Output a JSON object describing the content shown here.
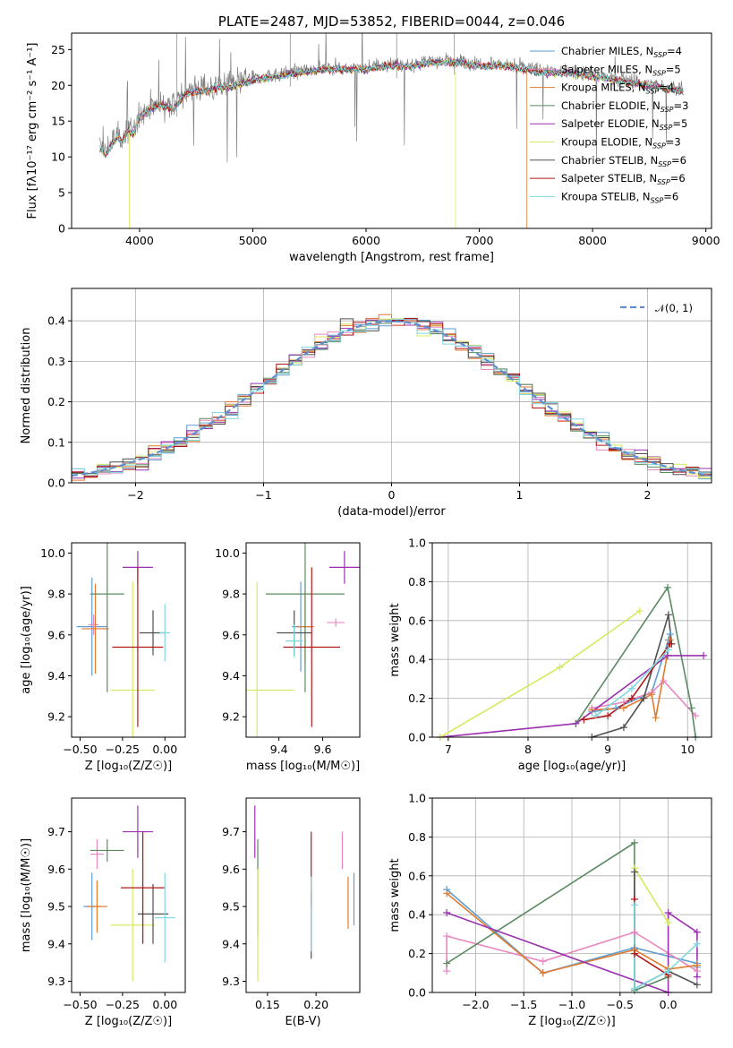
{
  "colors": [
    "#5f9ed1",
    "#e888c0",
    "#e07b30",
    "#5b8a60",
    "#9b30b0",
    "#d8e860",
    "#505050",
    "#b01818",
    "#80d8e0"
  ],
  "chart_data": [
    {
      "id": "spectrum",
      "type": "line",
      "title": "PLATE=2487, MJD=53852, FIBERID=0044, z=0.046",
      "xlabel": "wavelength [Angstrom, rest frame]",
      "ylabel": "Flux [fλ10⁻¹⁷ erg cm⁻² s⁻¹ A⁻¹]",
      "xlim": [
        3400,
        9050
      ],
      "ylim": [
        0,
        27.3
      ],
      "xticks": [
        4000,
        5000,
        6000,
        7000,
        8000,
        9000
      ],
      "yticks": [
        0,
        5,
        10,
        15,
        20,
        25
      ],
      "legend_position": "top-right",
      "continuum": {
        "x": [
          3650,
          3700,
          3750,
          3800,
          3850,
          3900,
          3950,
          4000,
          4100,
          4200,
          4300,
          4400,
          4500,
          4600,
          4700,
          4800,
          4900,
          5000,
          5200,
          5400,
          5600,
          5800,
          6000,
          6200,
          6400,
          6600,
          6800,
          7000,
          7200,
          7400,
          7600,
          7800,
          8000,
          8200,
          8400,
          8600,
          8800
        ],
        "y": [
          11.5,
          10.5,
          12.0,
          13.0,
          12.5,
          14.0,
          13.5,
          16.0,
          17.0,
          17.5,
          17.0,
          19.0,
          19.5,
          19.5,
          20.0,
          20.0,
          20.5,
          21.0,
          21.5,
          22.0,
          22.5,
          22.5,
          22.5,
          23.0,
          23.0,
          23.5,
          23.5,
          23.0,
          23.0,
          22.5,
          22.0,
          22.0,
          21.5,
          21.0,
          20.5,
          20.0,
          19.5
        ]
      },
      "series": [
        {
          "name": "Chabrier MILES, N$_{SSP}$=4"
        },
        {
          "name": "Salpeter MILES, N$_{SSP}$=5"
        },
        {
          "name": "Kroupa MILES, N$_{SSP}$=4"
        },
        {
          "name": "Chabrier ELODIE, N$_{SSP}$=3"
        },
        {
          "name": "Salpeter ELODIE, N$_{SSP}$=5"
        },
        {
          "name": "Kroupa ELODIE, N$_{SSP}$=3"
        },
        {
          "name": "Chabrier STELIB, N$_{SSP}$=6"
        },
        {
          "name": "Salpeter STELIB, N$_{SSP}$=6"
        },
        {
          "name": "Kroupa STELIB, N$_{SSP}$=6"
        }
      ]
    },
    {
      "id": "residuals",
      "type": "histogram",
      "xlabel": "(data-model)/error",
      "ylabel": "Normed distribution",
      "xlim": [
        -2.5,
        2.5
      ],
      "ylim": [
        0,
        0.48
      ],
      "xticks": [
        -2,
        -1,
        0,
        1,
        2
      ],
      "yticks": [
        0.0,
        0.1,
        0.2,
        0.3,
        0.4
      ],
      "bin_edges": [
        -2.5,
        2.5
      ],
      "n_bins": 50,
      "reference": {
        "name": "𝒩(0, 1)",
        "mean": 0,
        "sigma": 1
      },
      "grid": true,
      "legend_position": "top-right"
    },
    {
      "id": "age-vs-Z",
      "type": "errorbar",
      "xlabel": "Z [log₁₀(Z/Z☉)]",
      "ylabel": "age  [log₁₀(age/yr)]",
      "xlim": [
        -0.55,
        0.12
      ],
      "ylim": [
        9.1,
        10.05
      ],
      "xticks": [
        -0.5,
        -0.25,
        0.0
      ],
      "yticks": [
        9.2,
        9.4,
        9.6,
        9.8,
        10.0
      ],
      "points": [
        {
          "x": -0.43,
          "y": 9.64,
          "xerr": 0.09,
          "yerr": 0.24
        },
        {
          "x": -0.42,
          "y": 9.65,
          "xerr": 0.03,
          "yerr": 0.05
        },
        {
          "x": -0.41,
          "y": 9.63,
          "xerr": 0.08,
          "yerr": 0.22
        },
        {
          "x": -0.34,
          "y": 9.8,
          "xerr": 0.1,
          "yerr": 0.48
        },
        {
          "x": -0.16,
          "y": 9.93,
          "xerr": 0.09,
          "yerr": 0.08
        },
        {
          "x": -0.19,
          "y": 9.33,
          "xerr": 0.13,
          "yerr": 0.53
        },
        {
          "x": -0.07,
          "y": 9.61,
          "xerr": 0.08,
          "yerr": 0.11
        },
        {
          "x": -0.16,
          "y": 9.54,
          "xerr": 0.15,
          "yerr": 0.39
        },
        {
          "x": 0.0,
          "y": 9.61,
          "xerr": 0.03,
          "yerr": 0.14
        }
      ]
    },
    {
      "id": "age-vs-mass",
      "type": "errorbar",
      "xlabel": "mass [log₁₀(M/M☉)]",
      "ylabel": "",
      "xlim": [
        9.25,
        9.77
      ],
      "ylim": [
        9.1,
        10.05
      ],
      "xticks": [
        9.4,
        9.6
      ],
      "yticks": [
        9.2,
        9.4,
        9.6,
        9.8,
        10.0
      ],
      "points": [
        {
          "x": 9.5,
          "y": 9.64,
          "xerr": 0.04,
          "yerr": 0.22
        },
        {
          "x": 9.66,
          "y": 9.66,
          "xerr": 0.04,
          "yerr": 0.02
        },
        {
          "x": 9.52,
          "y": 9.64,
          "xerr": 0.04,
          "yerr": 0.17
        },
        {
          "x": 9.52,
          "y": 9.8,
          "xerr": 0.18,
          "yerr": 0.48
        },
        {
          "x": 9.7,
          "y": 9.93,
          "xerr": 0.07,
          "yerr": 0.08
        },
        {
          "x": 9.3,
          "y": 9.33,
          "xerr": 0.17,
          "yerr": 0.53
        },
        {
          "x": 9.47,
          "y": 9.61,
          "xerr": 0.08,
          "yerr": 0.11
        },
        {
          "x": 9.55,
          "y": 9.54,
          "xerr": 0.13,
          "yerr": 0.39
        },
        {
          "x": 9.47,
          "y": 9.57,
          "xerr": 0.04,
          "yerr": 0.08
        }
      ]
    },
    {
      "id": "weight-vs-age",
      "type": "line",
      "xlabel": "age  [log₁₀(age/yr)]",
      "ylabel": "mass weight",
      "xlim": [
        6.8,
        10.3
      ],
      "ylim": [
        0,
        1.0
      ],
      "xticks": [
        7,
        8,
        9,
        10
      ],
      "yticks": [
        0.0,
        0.2,
        0.4,
        0.6,
        0.8,
        1.0
      ],
      "grid": true,
      "lines": [
        {
          "x": [
            8.8,
            9.1,
            9.55,
            9.76,
            9.78
          ],
          "y": [
            0.13,
            0.15,
            0.23,
            0.5,
            0.53
          ]
        },
        {
          "x": [
            8.8,
            9.2,
            9.55,
            9.7,
            10.1
          ],
          "y": [
            0.15,
            0.18,
            0.23,
            0.29,
            0.11
          ]
        },
        {
          "x": [
            8.8,
            9.2,
            9.55,
            9.6,
            9.78
          ],
          "y": [
            0.14,
            0.15,
            0.22,
            0.1,
            0.5
          ]
        },
        {
          "x": [
            8.6,
            9.75,
            10.05,
            10.1
          ],
          "y": [
            0.07,
            0.77,
            0.15,
            0.0
          ]
        },
        {
          "x": [
            6.9,
            8.6,
            9.75,
            10.2
          ],
          "y": [
            0.0,
            0.07,
            0.42,
            0.42
          ]
        },
        {
          "x": [
            6.9,
            8.4,
            9.4
          ],
          "y": [
            0.0,
            0.36,
            0.65
          ]
        },
        {
          "x": [
            8.8,
            9.2,
            9.45,
            9.76,
            9.8
          ],
          "y": [
            0.0,
            0.05,
            0.2,
            0.63,
            0.48
          ]
        },
        {
          "x": [
            8.7,
            9.0,
            9.3,
            9.78
          ],
          "y": [
            0.09,
            0.11,
            0.2,
            0.48
          ]
        },
        {
          "x": [
            8.85,
            9.3,
            9.76
          ],
          "y": [
            0.11,
            0.25,
            0.45
          ]
        }
      ]
    },
    {
      "id": "mass-vs-Z",
      "type": "errorbar",
      "xlabel": "Z [log₁₀(Z/Z☉)]",
      "ylabel": "mass [log₁₀(M/M☉)]",
      "xlim": [
        -0.55,
        0.12
      ],
      "ylim": [
        9.27,
        9.79
      ],
      "xticks": [
        -0.5,
        -0.25,
        0.0
      ],
      "yticks": [
        9.3,
        9.4,
        9.5,
        9.6,
        9.7
      ],
      "points": [
        {
          "x": -0.43,
          "y": 9.5,
          "xerr": 0.05,
          "yerr": 0.09
        },
        {
          "x": -0.4,
          "y": 9.64,
          "xerr": 0.04,
          "yerr": 0.04
        },
        {
          "x": -0.4,
          "y": 9.5,
          "xerr": 0.06,
          "yerr": 0.07
        },
        {
          "x": -0.34,
          "y": 9.65,
          "xerr": 0.1,
          "yerr": 0.03
        },
        {
          "x": -0.16,
          "y": 9.7,
          "xerr": 0.09,
          "yerr": 0.07
        },
        {
          "x": -0.19,
          "y": 9.45,
          "xerr": 0.13,
          "yerr": 0.15
        },
        {
          "x": -0.07,
          "y": 9.48,
          "xerr": 0.09,
          "yerr": 0.08
        },
        {
          "x": -0.13,
          "y": 9.55,
          "xerr": 0.13,
          "yerr": 0.15
        },
        {
          "x": 0.0,
          "y": 9.47,
          "xerr": 0.06,
          "yerr": 0.12
        }
      ]
    },
    {
      "id": "mass-vs-ebv",
      "type": "errorbar",
      "xlabel": "E(B-V)",
      "ylabel": "",
      "xlim": [
        0.128,
        0.245
      ],
      "ylim": [
        9.27,
        9.79
      ],
      "xticks": [
        0.15,
        0.2
      ],
      "yticks": [
        9.3,
        9.4,
        9.5,
        9.6,
        9.7
      ],
      "points": [
        {
          "x": 0.239,
          "y": 9.52,
          "xerr": 0,
          "yerr": 0.07
        },
        {
          "x": 0.227,
          "y": 9.65,
          "xerr": 0,
          "yerr": 0.05
        },
        {
          "x": 0.233,
          "y": 9.51,
          "xerr": 0,
          "yerr": 0.07
        },
        {
          "x": 0.14,
          "y": 9.55,
          "xerr": 0,
          "yerr": 0.13
        },
        {
          "x": 0.137,
          "y": 9.7,
          "xerr": 0,
          "yerr": 0.07
        },
        {
          "x": 0.14,
          "y": 9.45,
          "xerr": 0,
          "yerr": 0.15
        },
        {
          "x": 0.195,
          "y": 9.45,
          "xerr": 0,
          "yerr": 0.09
        },
        {
          "x": 0.195,
          "y": 9.6,
          "xerr": 0,
          "yerr": 0.1
        },
        {
          "x": 0.195,
          "y": 9.48,
          "xerr": 0,
          "yerr": 0.1
        }
      ]
    },
    {
      "id": "weight-vs-Z",
      "type": "line",
      "xlabel": "Z [log₁₀(Z/Z☉)]",
      "ylabel": "mass weight",
      "xlim": [
        -2.45,
        0.45
      ],
      "ylim": [
        0,
        1.0
      ],
      "xticks": [
        -2.0,
        -1.5,
        -1.0,
        -0.5,
        0.0
      ],
      "yticks": [
        0.0,
        0.2,
        0.4,
        0.6,
        0.8,
        1.0
      ],
      "grid": true,
      "lines": [
        {
          "x": [
            -2.3,
            -1.3,
            -0.35,
            0.3,
            0.3
          ],
          "y": [
            0.53,
            0.1,
            0.23,
            0.15,
            0.13
          ]
        },
        {
          "x": [
            -2.3,
            -2.3,
            -1.3,
            -0.35,
            0.3
          ],
          "y": [
            0.11,
            0.29,
            0.16,
            0.31,
            0.11
          ]
        },
        {
          "x": [
            -2.3,
            -1.3,
            -0.35,
            0.0,
            0.3
          ],
          "y": [
            0.51,
            0.1,
            0.22,
            0.12,
            0.14
          ]
        },
        {
          "x": [
            -2.3,
            -0.35,
            -0.35,
            0.0
          ],
          "y": [
            0.15,
            0.77,
            0.01,
            0.08
          ]
        },
        {
          "x": [
            -2.3,
            0.0,
            0.0,
            0.3,
            0.3
          ],
          "y": [
            0.41,
            0.0,
            0.41,
            0.31,
            0.08
          ]
        },
        {
          "x": [
            -0.35,
            0.0
          ],
          "y": [
            0.64,
            0.36
          ]
        },
        {
          "x": [
            -0.35,
            -0.35,
            0.0,
            0.3
          ],
          "y": [
            0.62,
            0.02,
            0.11,
            0.04
          ]
        },
        {
          "x": [
            -0.35,
            -0.35,
            0.0
          ],
          "y": [
            0.48,
            0.2,
            0.09
          ]
        },
        {
          "x": [
            -0.35,
            -0.35,
            0.0,
            0.3
          ],
          "y": [
            0.45,
            0.02,
            0.11,
            0.25
          ]
        }
      ]
    }
  ]
}
